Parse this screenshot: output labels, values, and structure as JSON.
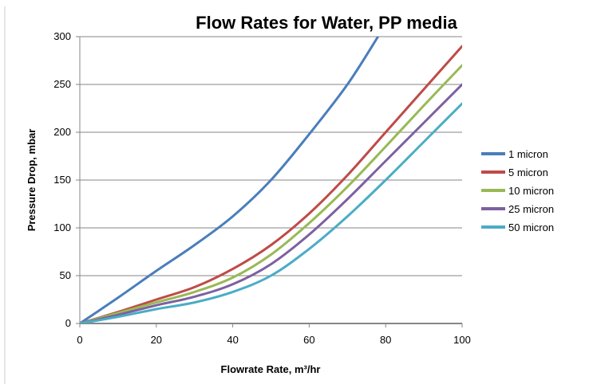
{
  "chart_data": {
    "type": "line",
    "title": "Flow Rates for Water, PP media",
    "xlabel": "Flowrate Rate, m³/hr",
    "ylabel": "Pressure Drop, mbar",
    "xlim": [
      0,
      100
    ],
    "ylim": [
      0,
      300
    ],
    "xticks": [
      0,
      20,
      40,
      60,
      80,
      100
    ],
    "yticks": [
      0,
      50,
      100,
      150,
      200,
      250,
      300
    ],
    "grid": "horizontal",
    "legend_position": "right",
    "series": [
      {
        "name": "1 micron",
        "color": "#4a7ebb",
        "points": [
          [
            0,
            0
          ],
          [
            10,
            27
          ],
          [
            20,
            55
          ],
          [
            30,
            82
          ],
          [
            40,
            112
          ],
          [
            50,
            150
          ],
          [
            60,
            198
          ],
          [
            70,
            250
          ],
          [
            78,
            300
          ]
        ]
      },
      {
        "name": "5 micron",
        "color": "#be4b48",
        "points": [
          [
            0,
            0
          ],
          [
            10,
            12
          ],
          [
            20,
            25
          ],
          [
            30,
            38
          ],
          [
            40,
            57
          ],
          [
            50,
            82
          ],
          [
            60,
            115
          ],
          [
            70,
            155
          ],
          [
            80,
            200
          ],
          [
            90,
            245
          ],
          [
            100,
            290
          ]
        ]
      },
      {
        "name": "10 micron",
        "color": "#98b954",
        "points": [
          [
            0,
            0
          ],
          [
            10,
            11
          ],
          [
            20,
            22
          ],
          [
            30,
            33
          ],
          [
            40,
            48
          ],
          [
            50,
            72
          ],
          [
            60,
            105
          ],
          [
            70,
            143
          ],
          [
            80,
            185
          ],
          [
            90,
            228
          ],
          [
            100,
            270
          ]
        ]
      },
      {
        "name": "25 micron",
        "color": "#7d60a0",
        "points": [
          [
            0,
            0
          ],
          [
            10,
            9
          ],
          [
            20,
            19
          ],
          [
            30,
            28
          ],
          [
            40,
            41
          ],
          [
            50,
            62
          ],
          [
            60,
            93
          ],
          [
            70,
            130
          ],
          [
            80,
            170
          ],
          [
            90,
            210
          ],
          [
            100,
            250
          ]
        ]
      },
      {
        "name": "50 micron",
        "color": "#4bacc6",
        "points": [
          [
            0,
            0
          ],
          [
            10,
            7
          ],
          [
            20,
            15
          ],
          [
            30,
            22
          ],
          [
            40,
            33
          ],
          [
            50,
            50
          ],
          [
            60,
            78
          ],
          [
            70,
            112
          ],
          [
            80,
            150
          ],
          [
            90,
            190
          ],
          [
            100,
            230
          ]
        ]
      }
    ]
  }
}
